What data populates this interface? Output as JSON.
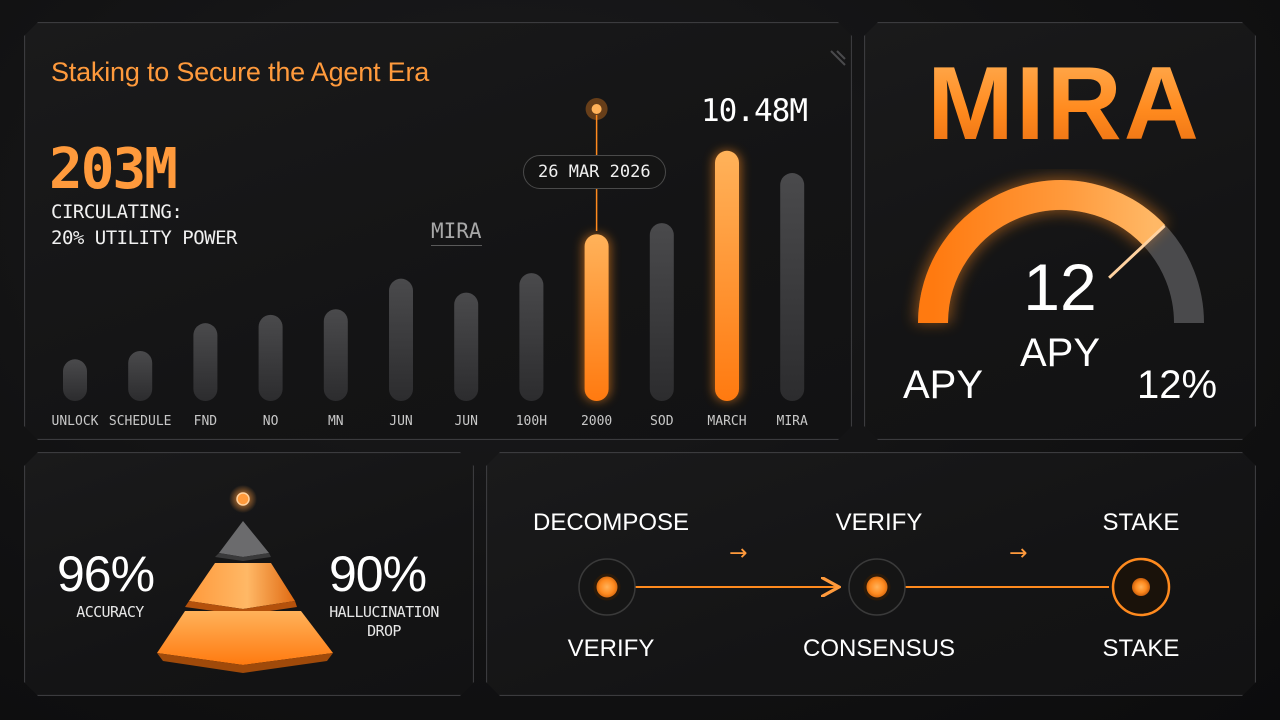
{
  "chart_panel": {
    "title": "Staking to Secure the Agent Era",
    "big_stat": "203M",
    "stat_line1": "CIRCULATING:",
    "stat_line2": "20% UTILITY POWER",
    "series_label": "MIRA",
    "date_pill": "26 MAR 2026",
    "peak_label": "10.48M"
  },
  "chart_data": {
    "type": "bar",
    "categories": [
      "UNLOCK",
      "SCHEDULE",
      "FND",
      "NO",
      "MN",
      "JUN",
      "JUN",
      "100H",
      "2000",
      "SOD",
      "MARCH",
      "MIRA"
    ],
    "values": [
      15,
      18,
      28,
      31,
      33,
      44,
      39,
      46,
      60,
      64,
      90,
      82
    ],
    "highlighted": [
      8,
      10
    ],
    "ylim": [
      0,
      100
    ],
    "colors": {
      "normal": "#3a3a3c",
      "highlight": "#ff8a1e"
    }
  },
  "gauge_panel": {
    "brand": "MIRA",
    "value": "12",
    "unit": "APY",
    "left_label": "APY",
    "right_label": "12%",
    "fill_fraction": 0.76
  },
  "pyramid_panel": {
    "left_value": "96%",
    "left_label": "ACCURACY",
    "right_value": "90%",
    "right_label_1": "HALLUCINATION",
    "right_label_2": "DROP"
  },
  "flow_panel": {
    "steps": [
      {
        "top": "DECOMPOSE",
        "bottom": "VERIFY"
      },
      {
        "top": "VERIFY",
        "bottom": "CONSENSUS"
      },
      {
        "top": "STAKE",
        "bottom": "STAKE"
      }
    ],
    "arrow_glyph": "→"
  },
  "colors": {
    "accent": "#ff8a1e",
    "accent_light": "#ffb25a",
    "bar_gray": "#3a3a3c",
    "panel_border": "#3b3b3e"
  }
}
